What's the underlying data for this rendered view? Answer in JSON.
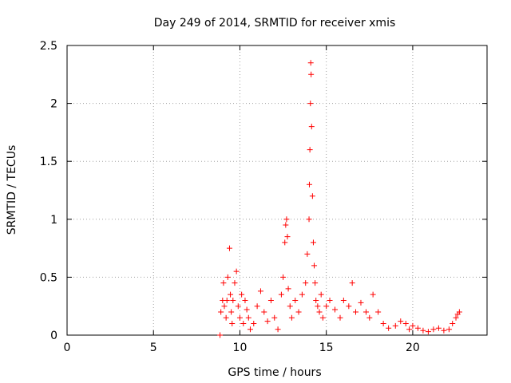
{
  "chart_data": {
    "type": "scatter",
    "title": "Day 249 of 2014, SRMTID for receiver xmis",
    "xlabel": "GPS time / hours",
    "ylabel": "SRMTID / TECUs",
    "xlim": [
      0,
      24.3
    ],
    "ylim": [
      0,
      2.5
    ],
    "xticks": [
      0,
      5,
      10,
      15,
      20
    ],
    "xtick_labels": [
      "0",
      "5",
      "10",
      "15",
      "20"
    ],
    "yticks": [
      0,
      0.5,
      1,
      1.5,
      2,
      2.5
    ],
    "ytick_labels": [
      "0",
      "0.5",
      "1",
      "1.5",
      "2",
      "2.5"
    ],
    "grid": true,
    "marker": "+",
    "series": [
      {
        "name": "xmis",
        "color": "#ff0000",
        "x": [
          8.85,
          8.9,
          9.0,
          9.05,
          9.1,
          9.2,
          9.25,
          9.3,
          9.4,
          9.45,
          9.5,
          9.55,
          9.6,
          9.7,
          9.8,
          9.9,
          10.0,
          10.1,
          10.2,
          10.3,
          10.4,
          10.5,
          10.6,
          10.8,
          11.0,
          11.2,
          11.4,
          11.6,
          11.8,
          12.0,
          12.2,
          12.4,
          12.5,
          12.6,
          12.65,
          12.7,
          12.75,
          12.8,
          12.9,
          13.0,
          13.2,
          13.4,
          13.6,
          13.8,
          13.9,
          14.0,
          14.02,
          14.05,
          14.08,
          14.1,
          14.12,
          14.15,
          14.2,
          14.25,
          14.3,
          14.35,
          14.4,
          14.5,
          14.6,
          14.7,
          14.8,
          15.0,
          15.2,
          15.5,
          15.8,
          16.0,
          16.3,
          16.5,
          16.7,
          17.0,
          17.3,
          17.5,
          17.7,
          18.0,
          18.3,
          18.6,
          19.0,
          19.3,
          19.6,
          19.8,
          20.0,
          20.3,
          20.6,
          20.9,
          21.2,
          21.5,
          21.8,
          22.1,
          22.3,
          22.5,
          22.6,
          22.7
        ],
        "y": [
          0.0,
          0.2,
          0.3,
          0.45,
          0.25,
          0.15,
          0.3,
          0.5,
          0.75,
          0.35,
          0.2,
          0.1,
          0.3,
          0.45,
          0.55,
          0.25,
          0.15,
          0.35,
          0.1,
          0.3,
          0.22,
          0.15,
          0.05,
          0.1,
          0.25,
          0.38,
          0.2,
          0.12,
          0.3,
          0.15,
          0.05,
          0.35,
          0.5,
          0.8,
          0.95,
          1.0,
          0.85,
          0.4,
          0.25,
          0.15,
          0.3,
          0.2,
          0.35,
          0.45,
          0.7,
          1.0,
          1.3,
          1.6,
          2.0,
          2.35,
          2.25,
          1.8,
          1.2,
          0.8,
          0.6,
          0.45,
          0.3,
          0.25,
          0.2,
          0.35,
          0.15,
          0.25,
          0.3,
          0.22,
          0.15,
          0.3,
          0.25,
          0.45,
          0.2,
          0.28,
          0.2,
          0.15,
          0.35,
          0.2,
          0.1,
          0.06,
          0.08,
          0.12,
          0.1,
          0.05,
          0.08,
          0.06,
          0.04,
          0.03,
          0.05,
          0.06,
          0.04,
          0.05,
          0.1,
          0.15,
          0.18,
          0.2
        ]
      }
    ]
  }
}
